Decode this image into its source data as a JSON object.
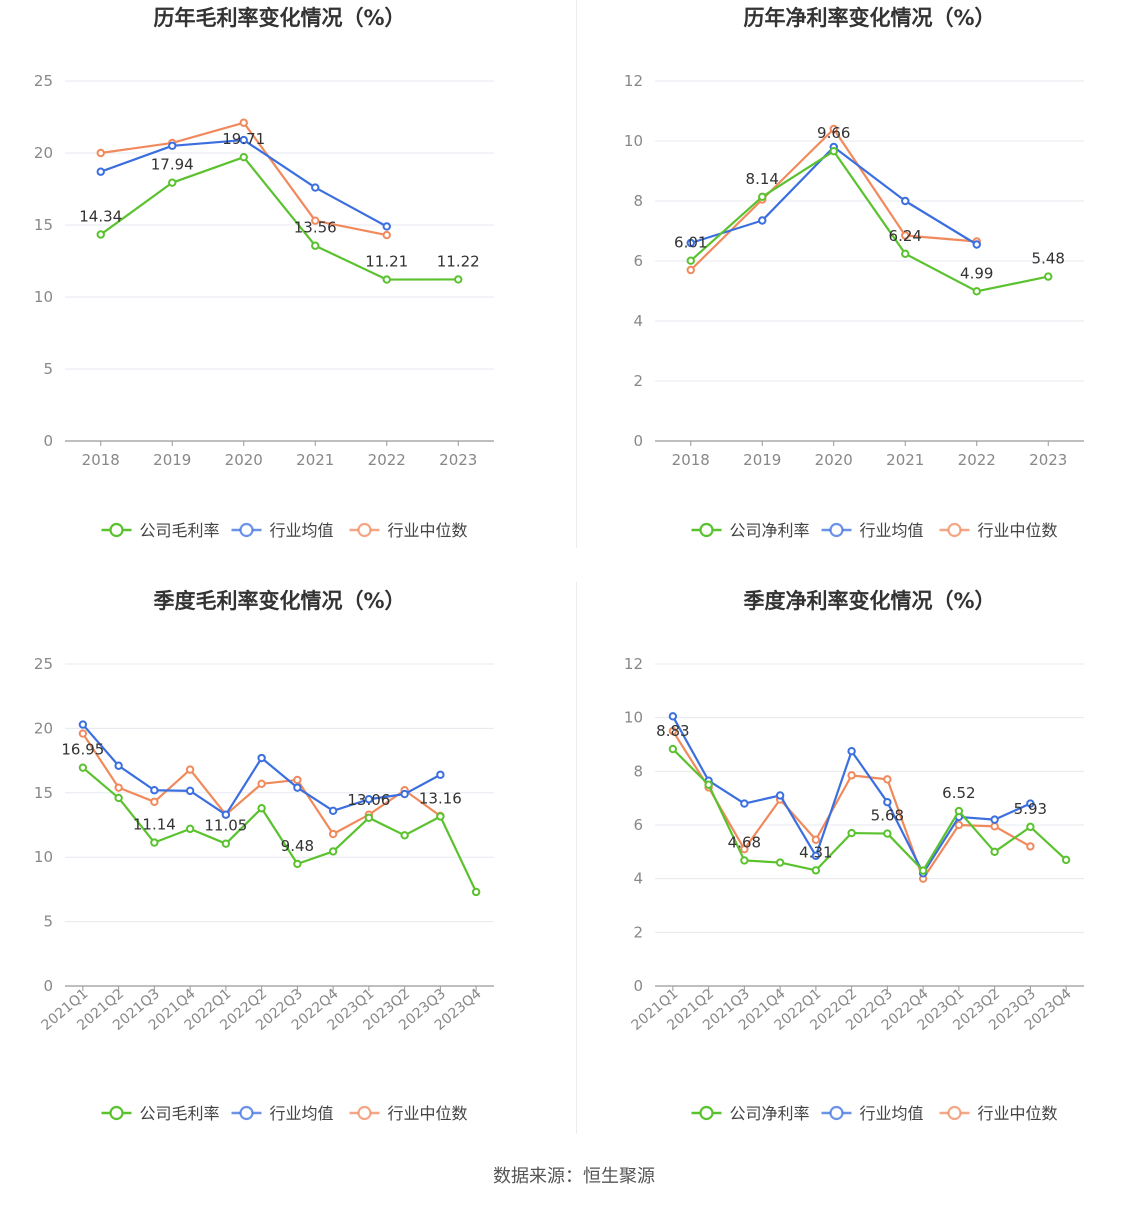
{
  "source_label": "数据来源：恒生聚源",
  "colors": {
    "company": "#5ac22e",
    "average": "#3b6fe0",
    "median": "#f08a5d",
    "grid": "#e6e8ef",
    "axis": "#999999",
    "tick": "#888888",
    "title": "#333333",
    "label": "#333333"
  },
  "chart_data": [
    {
      "type": "line",
      "title": "历年毛利率变化情况（%）",
      "categories": [
        "2018",
        "2019",
        "2020",
        "2021",
        "2022",
        "2023"
      ],
      "ylim": [
        0,
        25
      ],
      "yticks": [
        "0",
        "5",
        "10",
        "15",
        "20",
        "25"
      ],
      "tick_rotate": false,
      "series": [
        {
          "name": "公司毛利率",
          "key": "company",
          "values": [
            14.34,
            17.94,
            19.71,
            13.56,
            11.21,
            11.22
          ],
          "labels": [
            "14.34",
            "17.94",
            "19.71",
            "13.56",
            "11.21",
            "11.22"
          ]
        },
        {
          "name": "行业均值",
          "key": "average",
          "values": [
            18.7,
            20.5,
            20.9,
            17.6,
            14.9,
            null
          ]
        },
        {
          "name": "行业中位数",
          "key": "median",
          "values": [
            20.0,
            20.7,
            22.1,
            15.3,
            14.3,
            null
          ]
        }
      ]
    },
    {
      "type": "line",
      "title": "历年净利率变化情况（%）",
      "categories": [
        "2018",
        "2019",
        "2020",
        "2021",
        "2022",
        "2023"
      ],
      "ylim": [
        0,
        12
      ],
      "yticks": [
        "0",
        "2",
        "4",
        "6",
        "8",
        "10",
        "12"
      ],
      "tick_rotate": false,
      "series": [
        {
          "name": "公司净利率",
          "key": "company",
          "values": [
            6.01,
            8.14,
            9.66,
            6.24,
            4.99,
            5.48
          ],
          "labels": [
            "6.01",
            "8.14",
            "9.66",
            "6.24",
            "4.99",
            "5.48"
          ]
        },
        {
          "name": "行业均值",
          "key": "average",
          "values": [
            6.6,
            7.35,
            9.8,
            8.0,
            6.55,
            null
          ]
        },
        {
          "name": "行业中位数",
          "key": "median",
          "values": [
            5.7,
            8.05,
            10.4,
            6.85,
            6.65,
            null
          ]
        }
      ]
    },
    {
      "type": "line",
      "title": "季度毛利率变化情况（%）",
      "categories": [
        "2021Q1",
        "2021Q2",
        "2021Q3",
        "2021Q4",
        "2022Q1",
        "2022Q2",
        "2022Q3",
        "2022Q4",
        "2023Q1",
        "2023Q2",
        "2023Q3",
        "2023Q4"
      ],
      "ylim": [
        0,
        25
      ],
      "yticks": [
        "0",
        "5",
        "10",
        "15",
        "20",
        "25"
      ],
      "tick_rotate": true,
      "series": [
        {
          "name": "公司毛利率",
          "key": "company",
          "values": [
            16.95,
            14.6,
            11.14,
            12.2,
            11.05,
            13.8,
            9.48,
            10.45,
            13.06,
            11.7,
            13.16,
            7.3
          ],
          "labels": [
            "16.95",
            "",
            "11.14",
            "",
            "11.05",
            "",
            "9.48",
            "",
            "13.06",
            "",
            "13.16",
            ""
          ]
        },
        {
          "name": "行业均值",
          "key": "average",
          "values": [
            20.3,
            17.1,
            15.2,
            15.15,
            13.3,
            17.7,
            15.4,
            13.6,
            14.5,
            14.9,
            16.4,
            null
          ]
        },
        {
          "name": "行业中位数",
          "key": "median",
          "values": [
            19.6,
            15.4,
            14.3,
            16.8,
            13.3,
            15.7,
            16.0,
            11.8,
            13.3,
            15.2,
            13.2,
            null
          ]
        }
      ]
    },
    {
      "type": "line",
      "title": "季度净利率变化情况（%）",
      "categories": [
        "2021Q1",
        "2021Q2",
        "2021Q3",
        "2021Q4",
        "2022Q1",
        "2022Q2",
        "2022Q3",
        "2022Q4",
        "2023Q1",
        "2023Q2",
        "2023Q3",
        "2023Q4"
      ],
      "ylim": [
        0,
        12
      ],
      "yticks": [
        "0",
        "2",
        "4",
        "6",
        "8",
        "10",
        "12"
      ],
      "tick_rotate": true,
      "series": [
        {
          "name": "公司净利率",
          "key": "company",
          "values": [
            8.83,
            7.5,
            4.68,
            4.6,
            4.31,
            5.7,
            5.68,
            4.3,
            6.52,
            5.0,
            5.93,
            4.7
          ],
          "labels": [
            "8.83",
            "",
            "4.68",
            "",
            "4.31",
            "",
            "5.68",
            "",
            "6.52",
            "",
            "5.93",
            ""
          ]
        },
        {
          "name": "行业均值",
          "key": "average",
          "values": [
            10.05,
            7.65,
            6.8,
            7.1,
            4.85,
            8.75,
            6.85,
            4.2,
            6.3,
            6.2,
            6.8,
            null
          ]
        },
        {
          "name": "行业中位数",
          "key": "median",
          "values": [
            9.5,
            7.4,
            5.1,
            6.95,
            5.45,
            7.85,
            7.7,
            4.0,
            6.0,
            5.95,
            5.2,
            null
          ]
        }
      ]
    }
  ]
}
